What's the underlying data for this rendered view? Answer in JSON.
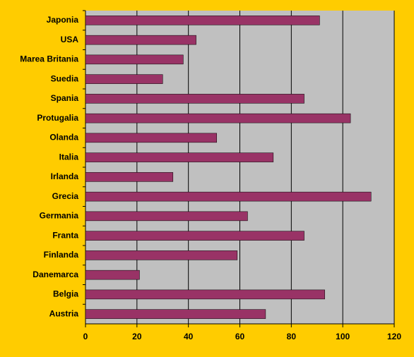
{
  "chart_data": {
    "type": "bar",
    "orientation": "horizontal",
    "categories": [
      "Japonia",
      "USA",
      "Marea Britania",
      "Suedia",
      "Spania",
      "Protugalia",
      "Olanda",
      "Italia",
      "Irlanda",
      "Grecia",
      "Germania",
      "Franta",
      "Finlanda",
      "Danemarca",
      "Belgia",
      "Austria"
    ],
    "values": [
      91,
      43,
      38,
      30,
      85,
      103,
      51,
      73,
      34,
      111,
      63,
      85,
      59,
      21,
      93,
      70
    ],
    "color": "#993366",
    "xlim": [
      0,
      120
    ],
    "xticks": [
      0,
      20,
      40,
      60,
      80,
      100,
      120
    ],
    "grid": true
  }
}
